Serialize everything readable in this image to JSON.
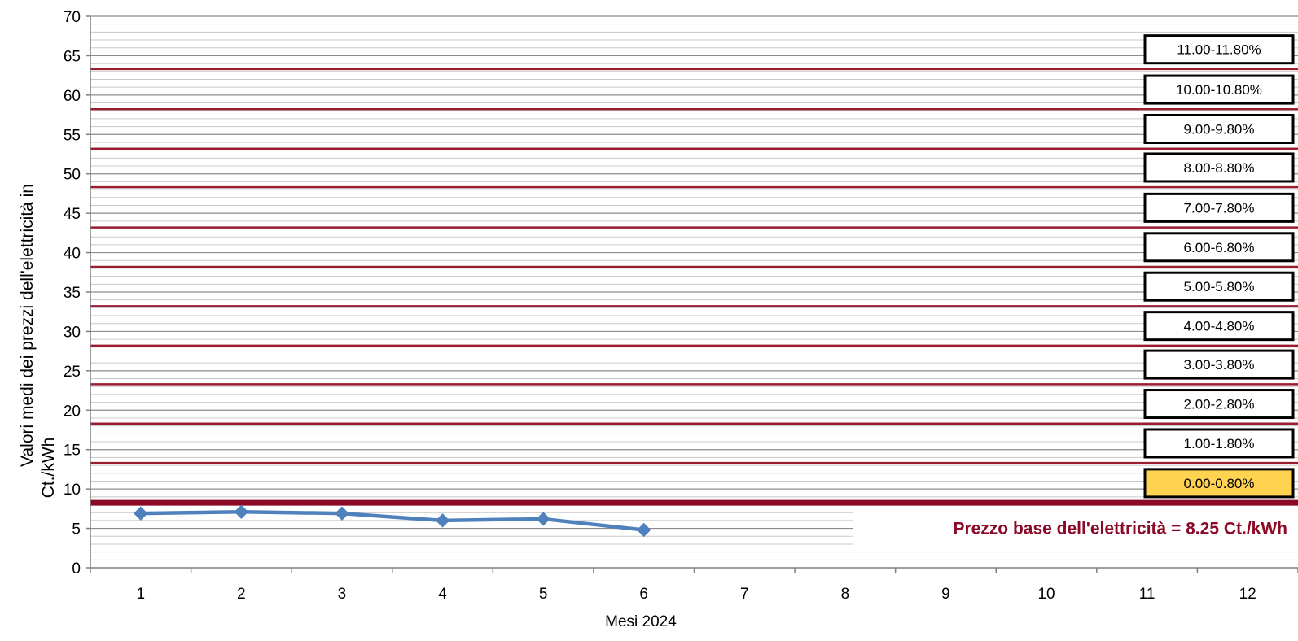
{
  "chart_data": {
    "type": "line",
    "xlabel": "Mesi 2024",
    "ylabel": "Valori medi dei prezzi dell'elettricità in Ct./kWh",
    "ylabel_lines": [
      "Valori medi dei prezzi dell'elettricità in",
      "Ct./kWh"
    ],
    "xlim": [
      0.5,
      12.5
    ],
    "ylim": [
      0,
      70
    ],
    "x_ticks": [
      1,
      2,
      3,
      4,
      5,
      6,
      7,
      8,
      9,
      10,
      11,
      12
    ],
    "y_ticks": [
      0,
      5,
      10,
      15,
      20,
      25,
      30,
      35,
      40,
      45,
      50,
      55,
      60,
      65,
      70
    ],
    "minor_grid_step": 1,
    "grid": true,
    "series": [
      {
        "x": [
          1,
          2,
          3,
          4,
          5,
          6
        ],
        "values": [
          6.9,
          7.1,
          6.9,
          6.0,
          6.2,
          4.8
        ],
        "color": "#4f81bd",
        "marker": "diamond"
      }
    ],
    "base_price_line": {
      "value": 8.25,
      "color": "#8b0a28",
      "label": "Prezzo base dell'elettricità = 8.25 Ct./kWh"
    },
    "bands": [
      {
        "label": "0.00-0.80%",
        "line_value": 8.25,
        "highlight": true
      },
      {
        "label": "1.00-1.80%",
        "line_value": 13.3
      },
      {
        "label": "2.00-2.80%",
        "line_value": 18.3
      },
      {
        "label": "3.00-3.80%",
        "line_value": 23.3
      },
      {
        "label": "4.00-4.80%",
        "line_value": 28.2
      },
      {
        "label": "5.00-5.80%",
        "line_value": 33.2
      },
      {
        "label": "6.00-6.80%",
        "line_value": 38.2
      },
      {
        "label": "7.00-7.80%",
        "line_value": 43.2
      },
      {
        "label": "8.00-8.80%",
        "line_value": 48.3
      },
      {
        "label": "9.00-9.80%",
        "line_value": 53.2
      },
      {
        "label": "10.00-10.80%",
        "line_value": 58.2
      },
      {
        "label": "11.00-11.80%",
        "line_value": 63.3
      }
    ],
    "colors": {
      "band_line": "#9b1c31",
      "band_label_highlight_fill": "#ffd34f",
      "band_label_fill": "#ffffff",
      "grid": "#8c8c8c",
      "axis": "#7f7f7f"
    }
  }
}
